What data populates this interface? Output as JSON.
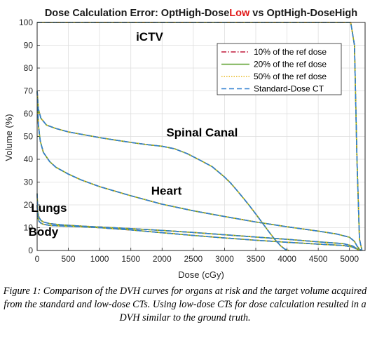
{
  "chart_data": {
    "type": "line",
    "title": {
      "prefix": "Dose Calculation Error: OptHigh-Dose",
      "highlight": "Low",
      "suffix": " vs OptHigh-DoseHigh",
      "highlight_color": "#e01818"
    },
    "xlabel": "Dose (cGy)",
    "ylabel": "Volume (%)",
    "xlim": [
      0,
      5250
    ],
    "ylim": [
      0,
      100
    ],
    "xticks": [
      "0",
      "500",
      "1000",
      "1500",
      "2000",
      "2500",
      "3000",
      "3500",
      "4000",
      "4500",
      "5000"
    ],
    "yticks": [
      "0",
      "10",
      "20",
      "30",
      "40",
      "50",
      "60",
      "70",
      "80",
      "90",
      "100"
    ],
    "grid": true,
    "legend_position": "top-right",
    "legend": [
      {
        "label": "10% of the ref dose",
        "color": "#c0183a",
        "style": "dash-dot"
      },
      {
        "label": "20% of the ref dose",
        "color": "#5aa02c",
        "style": "solid"
      },
      {
        "label": "50% of the ref dose",
        "color": "#e8b820",
        "style": "dotted"
      },
      {
        "label": "Standard-Dose CT",
        "color": "#2f7fd0",
        "style": "dashed"
      }
    ],
    "series": [
      {
        "name": "iCTV",
        "x": [
          0,
          30,
          60,
          5020,
          5080,
          5120,
          5160,
          5200
        ],
        "y": [
          100,
          100,
          100,
          100,
          90,
          40,
          5,
          0
        ]
      },
      {
        "name": "Spinal Canal",
        "x": [
          0,
          20,
          60,
          150,
          300,
          500,
          800,
          1000,
          1300,
          1600,
          1800,
          2000,
          2200,
          2400,
          2600,
          2800,
          3000,
          3100,
          3200,
          3300,
          3400,
          3500,
          3600,
          3700,
          3800,
          3900,
          3970,
          4030
        ],
        "y": [
          70,
          62,
          58,
          55,
          53.5,
          52,
          50.5,
          49.5,
          48.2,
          47,
          46.3,
          45.7,
          44.6,
          42.5,
          39.7,
          36.8,
          32.2,
          29.5,
          26.3,
          23,
          19.6,
          16,
          12.3,
          8.6,
          5,
          2,
          0.5,
          0
        ]
      },
      {
        "name": "Heart",
        "x": [
          0,
          20,
          50,
          100,
          200,
          300,
          500,
          700,
          1000,
          1500,
          2000,
          2500,
          3000,
          3500,
          4000,
          4500,
          4800,
          5000,
          5080,
          5120,
          5160,
          5200
        ],
        "y": [
          70,
          55,
          48,
          43,
          39,
          36.5,
          33.5,
          31,
          28,
          24,
          20.3,
          17.4,
          14.9,
          12.5,
          10.4,
          8.5,
          7.2,
          5.8,
          4,
          2,
          0.5,
          0
        ]
      },
      {
        "name": "Lungs",
        "x": [
          0,
          10,
          30,
          60,
          100,
          200,
          400,
          700,
          1000,
          1500,
          2000,
          2500,
          3000,
          3500,
          4000,
          4500,
          4900,
          5050,
          5120,
          5180
        ],
        "y": [
          25,
          17,
          14.5,
          13.2,
          12.5,
          11.8,
          11.2,
          10.7,
          10.3,
          9.6,
          8.8,
          7.9,
          6.9,
          5.9,
          4.9,
          3.8,
          3,
          2,
          0.8,
          0
        ]
      },
      {
        "name": "Body",
        "x": [
          0,
          10,
          30,
          60,
          100,
          200,
          400,
          700,
          1000,
          1500,
          2000,
          2500,
          3000,
          3500,
          4000,
          4500,
          4900,
          5050,
          5120,
          5180
        ],
        "y": [
          20,
          14.5,
          12.8,
          12,
          11.5,
          11,
          10.7,
          10.4,
          10,
          9,
          7.8,
          6.6,
          5.5,
          4.5,
          3.6,
          2.8,
          2.2,
          1.5,
          0.6,
          0
        ]
      }
    ],
    "annotations": [
      {
        "text": "iCTV",
        "x": 1800,
        "y": 92
      },
      {
        "text": "Spinal Canal",
        "x": 2640,
        "y": 50
      },
      {
        "text": "Heart",
        "x": 2070,
        "y": 24.5
      },
      {
        "text": "Lungs",
        "x": 190,
        "y": 17
      },
      {
        "text": "Body",
        "x": 100,
        "y": 6.5
      }
    ]
  },
  "caption": "Figure 1: Comparison of the DVH curves for organs at risk and the target volume acquired from the standard and low-dose CTs. Using low-dose CTs for dose calculation resulted in a DVH similar to the ground truth."
}
